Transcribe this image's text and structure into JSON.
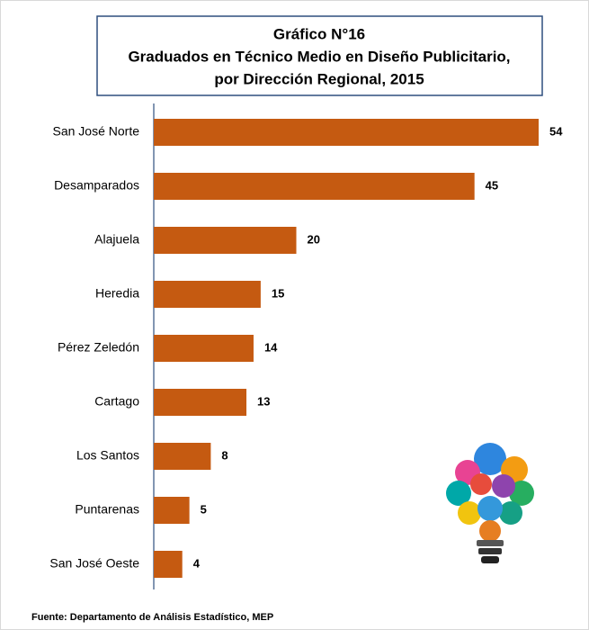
{
  "chart_data": {
    "type": "bar",
    "orientation": "horizontal",
    "title": "Gráfico N°16",
    "subtitle": [
      "Graduados en Técnico Medio en Diseño Publicitario,",
      "por Dirección Regional, 2015"
    ],
    "categories": [
      "San José Norte",
      "Desamparados",
      "Alajuela",
      "Heredia",
      "Pérez Zeledón",
      "Cartago",
      "Los Santos",
      "Puntarenas",
      "San José Oeste"
    ],
    "values": [
      54,
      45,
      20,
      15,
      14,
      13,
      8,
      5,
      4
    ],
    "color": "#c55a11",
    "source": "Fuente: Departamento de Análisis Estadístico, MEP"
  }
}
